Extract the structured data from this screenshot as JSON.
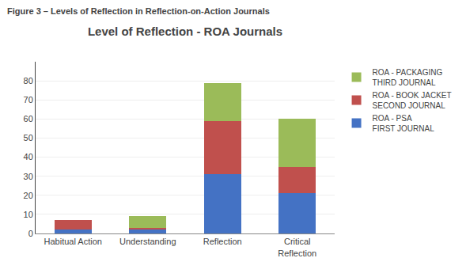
{
  "chart_data": {
    "type": "bar",
    "title": "Level of Reflection - ROA Journals",
    "subtitle": "Figure 3 – Levels of Reflection in Reflection-on-Action Journals",
    "categories": [
      "Habitual Action",
      "Understanding",
      "Reflection",
      "Critical\nReflection"
    ],
    "series": [
      {
        "name": "ROA - PSA\nFIRST JOURNAL",
        "color": "#4472C4",
        "values": [
          2,
          2,
          31,
          21
        ]
      },
      {
        "name": "ROA - BOOK JACKET\nSECOND JOURNAL",
        "color": "#C0504D",
        "values": [
          5,
          1,
          28,
          14
        ]
      },
      {
        "name": "ROA - PACKAGING\nTHIRD JOURNAL",
        "color": "#9BBB59",
        "values": [
          0,
          6,
          20,
          25
        ]
      }
    ],
    "stacked": true,
    "ylim": [
      0,
      90
    ],
    "yticks": [
      0,
      10,
      20,
      30,
      40,
      50,
      60,
      70,
      80
    ],
    "grid": true,
    "legend": "right"
  }
}
